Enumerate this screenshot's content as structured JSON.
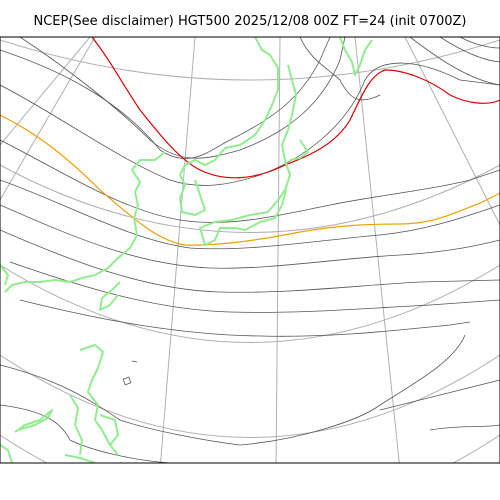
{
  "title": "NCEP(See disclaimer) HGT500 2025/12/08 00Z FT=24 (init 0700Z)",
  "colors": {
    "background": "#ffffff",
    "frame": "#000000",
    "graticule": "#b0b0b0",
    "contour": "#555555",
    "coastline": "#90ee90",
    "contour_highlight_red": "#e00000",
    "contour_highlight_orange": "#f0a000"
  }
}
